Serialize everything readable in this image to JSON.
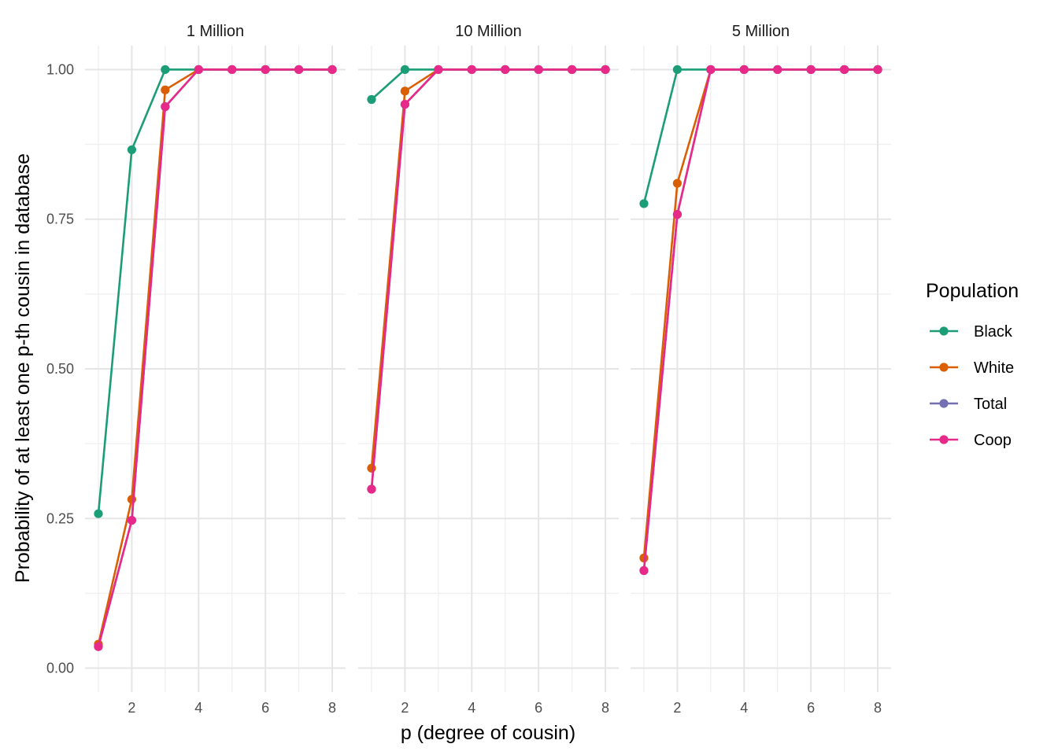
{
  "chart_data": {
    "type": "line",
    "xlabel": "p (degree of cousin)",
    "ylabel": "Probability of at least one p-th cousin in database",
    "x": [
      1,
      2,
      3,
      4,
      5,
      6,
      7,
      8
    ],
    "xlim": [
      0.6,
      8.4
    ],
    "ylim": [
      -0.04,
      1.04
    ],
    "x_ticks": [
      2,
      4,
      6,
      8
    ],
    "y_ticks": [
      0,
      0.25,
      0.5,
      0.75,
      1
    ],
    "x_tick_labels": [
      "2",
      "4",
      "6",
      "8"
    ],
    "y_tick_labels": [
      "0.00",
      "0.25",
      "0.50",
      "0.75",
      "1.00"
    ],
    "grid": true,
    "legend": {
      "title": "Population",
      "position": "right",
      "entries": [
        "Black",
        "White",
        "Total",
        "Coop"
      ]
    },
    "colors": {
      "Black": "#1b9e77",
      "White": "#d95f02",
      "Total": "#7570b3",
      "Coop": "#e7298a"
    },
    "panels": [
      {
        "label": "1 Million",
        "series": [
          {
            "name": "Black",
            "values": [
              0.258,
              0.866,
              1.0,
              1.0,
              1.0,
              1.0,
              1.0,
              1.0
            ]
          },
          {
            "name": "White",
            "values": [
              0.04,
              0.282,
              0.966,
              1.0,
              1.0,
              1.0,
              1.0,
              1.0
            ]
          },
          {
            "name": "Total",
            "values": [
              0.036,
              0.247,
              0.938,
              1.0,
              1.0,
              1.0,
              1.0,
              1.0
            ]
          },
          {
            "name": "Coop",
            "values": [
              0.036,
              0.247,
              0.938,
              1.0,
              1.0,
              1.0,
              1.0,
              1.0
            ]
          }
        ]
      },
      {
        "label": "10 Million",
        "series": [
          {
            "name": "Black",
            "values": [
              0.95,
              1.0,
              1.0,
              1.0,
              1.0,
              1.0,
              1.0,
              1.0
            ]
          },
          {
            "name": "White",
            "values": [
              0.334,
              0.964,
              1.0,
              1.0,
              1.0,
              1.0,
              1.0,
              1.0
            ]
          },
          {
            "name": "Total",
            "values": [
              0.299,
              0.942,
              1.0,
              1.0,
              1.0,
              1.0,
              1.0,
              1.0
            ]
          },
          {
            "name": "Coop",
            "values": [
              0.299,
              0.942,
              1.0,
              1.0,
              1.0,
              1.0,
              1.0,
              1.0
            ]
          }
        ]
      },
      {
        "label": "5 Million",
        "series": [
          {
            "name": "Black",
            "values": [
              0.776,
              1.0,
              1.0,
              1.0,
              1.0,
              1.0,
              1.0,
              1.0
            ]
          },
          {
            "name": "White",
            "values": [
              0.184,
              0.81,
              1.0,
              1.0,
              1.0,
              1.0,
              1.0,
              1.0
            ]
          },
          {
            "name": "Total",
            "values": [
              0.163,
              0.758,
              1.0,
              1.0,
              1.0,
              1.0,
              1.0,
              1.0
            ]
          },
          {
            "name": "Coop",
            "values": [
              0.163,
              0.758,
              1.0,
              1.0,
              1.0,
              1.0,
              1.0,
              1.0
            ]
          }
        ]
      }
    ]
  }
}
